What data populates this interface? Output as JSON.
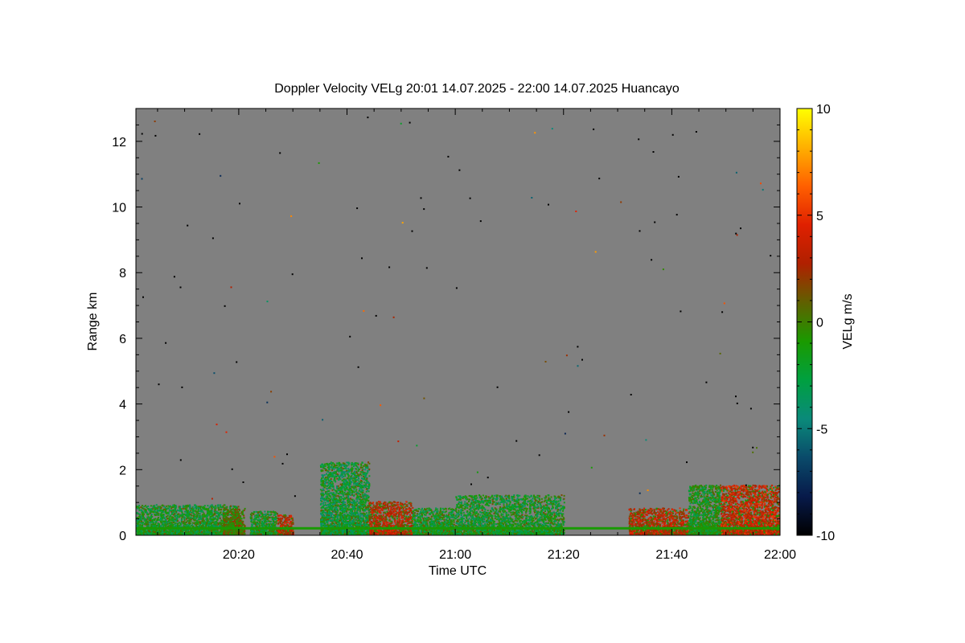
{
  "chart_data": {
    "type": "heatmap",
    "title": "Doppler Velocity VELg   20:01 14.07.2025 - 22:00 14.07.2025 Huancayo",
    "xlabel": "Time UTC",
    "ylabel": "Range km",
    "colorbar_label": "VELg m/s",
    "x_range_minutes_from_2000": [
      1,
      120
    ],
    "xlim_time": [
      "20:01",
      "22:00"
    ],
    "x_ticks": [
      {
        "label": "20:20",
        "minutes": 20
      },
      {
        "label": "20:40",
        "minutes": 40
      },
      {
        "label": "21:00",
        "minutes": 60
      },
      {
        "label": "21:20",
        "minutes": 80
      },
      {
        "label": "21:40",
        "minutes": 100
      },
      {
        "label": "22:00",
        "minutes": 120
      }
    ],
    "ylim": [
      0,
      13
    ],
    "y_ticks": [
      0,
      2,
      4,
      6,
      8,
      10,
      12
    ],
    "colorbar_range": [
      -10,
      10
    ],
    "colorbar_ticks": [
      -10,
      -5,
      0,
      5,
      10
    ],
    "background_color": "#808080",
    "colormap": [
      "#000000",
      "#071a4a",
      "#0a4a6a",
      "#0a8a7a",
      "#00a040",
      "#1a9a00",
      "#606000",
      "#b02000",
      "#e02000",
      "#ff6000",
      "#ffb000",
      "#ffff00"
    ],
    "echo_regions": [
      {
        "t_start": 1,
        "t_end": 20,
        "range_top_km": 0.9,
        "dominant_velocity_ms": -2
      },
      {
        "t_start": 17,
        "t_end": 21,
        "range_top_km": 0.8,
        "dominant_velocity_ms": 0.5
      },
      {
        "t_start": 22,
        "t_end": 27,
        "range_top_km": 0.7,
        "dominant_velocity_ms": -2
      },
      {
        "t_start": 27,
        "t_end": 30,
        "range_top_km": 0.6,
        "dominant_velocity_ms": 3
      },
      {
        "t_start": 35,
        "t_end": 44,
        "range_top_km": 2.2,
        "dominant_velocity_ms": -2.5
      },
      {
        "t_start": 44,
        "t_end": 52,
        "range_top_km": 1.0,
        "dominant_velocity_ms": 3
      },
      {
        "t_start": 52,
        "t_end": 60,
        "range_top_km": 0.8,
        "dominant_velocity_ms": -2
      },
      {
        "t_start": 60,
        "t_end": 80,
        "range_top_km": 1.2,
        "dominant_velocity_ms": -2
      },
      {
        "t_start": 92,
        "t_end": 103,
        "range_top_km": 0.8,
        "dominant_velocity_ms": 3
      },
      {
        "t_start": 103,
        "t_end": 109,
        "range_top_km": 1.5,
        "dominant_velocity_ms": -1.5
      },
      {
        "t_start": 109,
        "t_end": 120,
        "range_top_km": 1.5,
        "dominant_velocity_ms": 3.5
      }
    ]
  }
}
